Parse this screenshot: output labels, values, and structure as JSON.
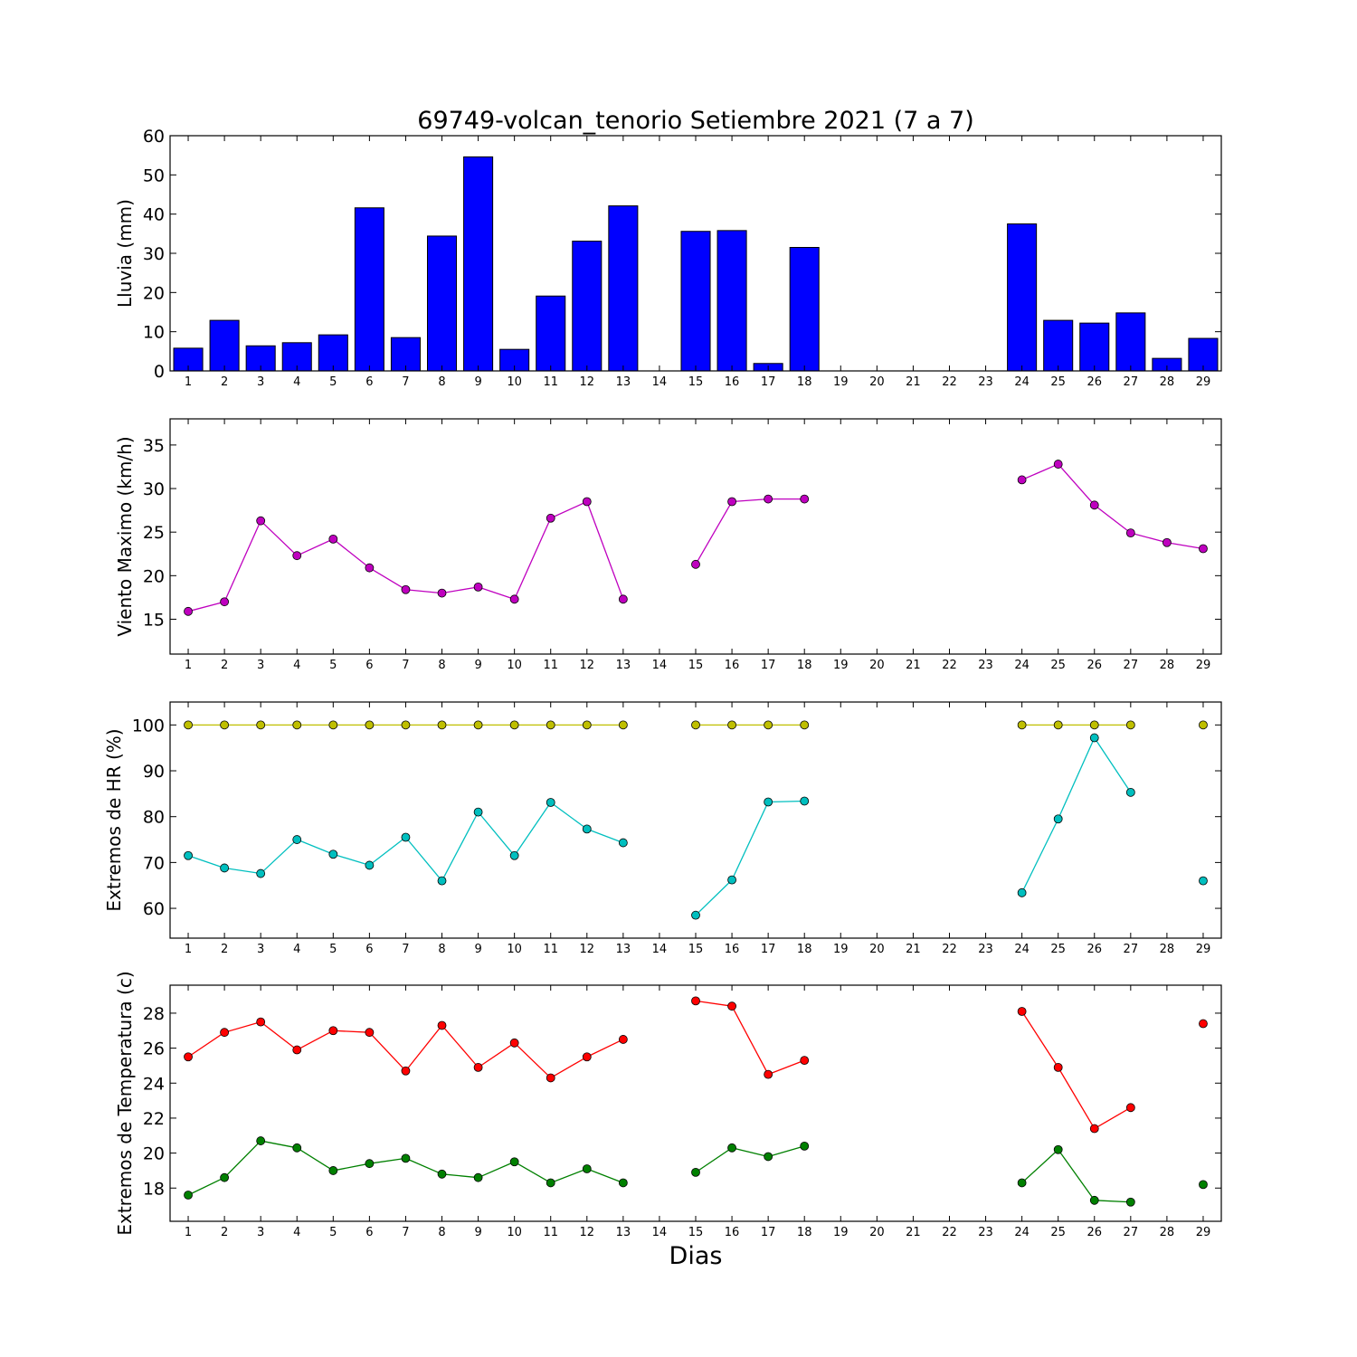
{
  "chart_data": {
    "type": "multi-panel",
    "title": "69749-volcan_tenorio Setiembre 2021  (7 a 7)",
    "xlabel": "Dias",
    "x": [
      1,
      2,
      3,
      4,
      5,
      6,
      7,
      8,
      9,
      10,
      11,
      12,
      13,
      14,
      15,
      16,
      17,
      18,
      19,
      20,
      21,
      22,
      23,
      24,
      25,
      26,
      27,
      28,
      29
    ],
    "panels": [
      {
        "type": "bar",
        "ylabel": "Lluvia (mm)",
        "ylim": [
          0,
          60
        ],
        "yticks": [
          0,
          10,
          20,
          30,
          40,
          50,
          60
        ],
        "series": [
          {
            "color": "#0000ff",
            "values": [
              5.8,
              12.9,
              6.4,
              7.2,
              9.2,
              41.6,
              8.5,
              34.4,
              54.6,
              5.5,
              19.1,
              33.1,
              42.1,
              0,
              35.6,
              35.8,
              1.9,
              31.5,
              0,
              0,
              0,
              0,
              0,
              37.5,
              12.9,
              12.2,
              14.8,
              3.2,
              8.3
            ]
          }
        ]
      },
      {
        "type": "line",
        "ylabel": "Viento Maximo (km/h)",
        "ylim": [
          11,
          38
        ],
        "yticks": [
          15,
          20,
          25,
          30,
          35
        ],
        "series": [
          {
            "color": "#bf00bf",
            "values": [
              15.9,
              17.0,
              26.3,
              22.3,
              24.2,
              20.9,
              18.4,
              18.0,
              18.7,
              17.3,
              26.6,
              28.5,
              17.3,
              null,
              21.3,
              28.5,
              28.8,
              28.8,
              null,
              null,
              null,
              null,
              null,
              31.0,
              32.8,
              28.1,
              24.9,
              23.8,
              23.1
            ]
          }
        ]
      },
      {
        "type": "line",
        "ylabel": "Extremos de HR (%)",
        "ylim": [
          53.5,
          105
        ],
        "yticks": [
          60,
          70,
          80,
          90,
          100
        ],
        "series": [
          {
            "color": "#bfbf00",
            "values": [
              100,
              100,
              100,
              100,
              100,
              100,
              100,
              100,
              100,
              100,
              100,
              100,
              100,
              null,
              100,
              100,
              100,
              100,
              null,
              null,
              null,
              null,
              null,
              100,
              100,
              100,
              100,
              null,
              100
            ]
          },
          {
            "color": "#00bfbf",
            "values": [
              71.5,
              68.8,
              67.6,
              75.0,
              71.8,
              69.4,
              75.5,
              66.0,
              81.0,
              71.5,
              83.1,
              77.3,
              74.3,
              null,
              58.5,
              66.2,
              83.2,
              83.4,
              null,
              null,
              null,
              null,
              null,
              63.4,
              79.5,
              97.2,
              85.3,
              null,
              66.0
            ]
          }
        ]
      },
      {
        "type": "line",
        "ylabel": "Extremos de Temperatura (c)",
        "ylim": [
          16.1,
          29.6
        ],
        "yticks": [
          18,
          20,
          22,
          24,
          26,
          28
        ],
        "series": [
          {
            "color": "#ff0000",
            "values": [
              25.5,
              26.9,
              27.5,
              25.9,
              27.0,
              26.9,
              24.7,
              27.3,
              24.9,
              26.3,
              24.3,
              25.5,
              26.5,
              null,
              28.7,
              28.4,
              24.5,
              25.3,
              null,
              null,
              null,
              null,
              null,
              28.1,
              24.9,
              21.4,
              22.6,
              null,
              27.4
            ]
          },
          {
            "color": "#008000",
            "values": [
              17.6,
              18.6,
              20.7,
              20.3,
              19.0,
              19.4,
              19.7,
              18.8,
              18.6,
              19.5,
              18.3,
              19.1,
              18.3,
              null,
              18.9,
              20.3,
              19.8,
              20.4,
              null,
              null,
              null,
              null,
              null,
              18.3,
              20.2,
              17.3,
              17.2,
              null,
              18.2
            ]
          }
        ]
      }
    ]
  }
}
